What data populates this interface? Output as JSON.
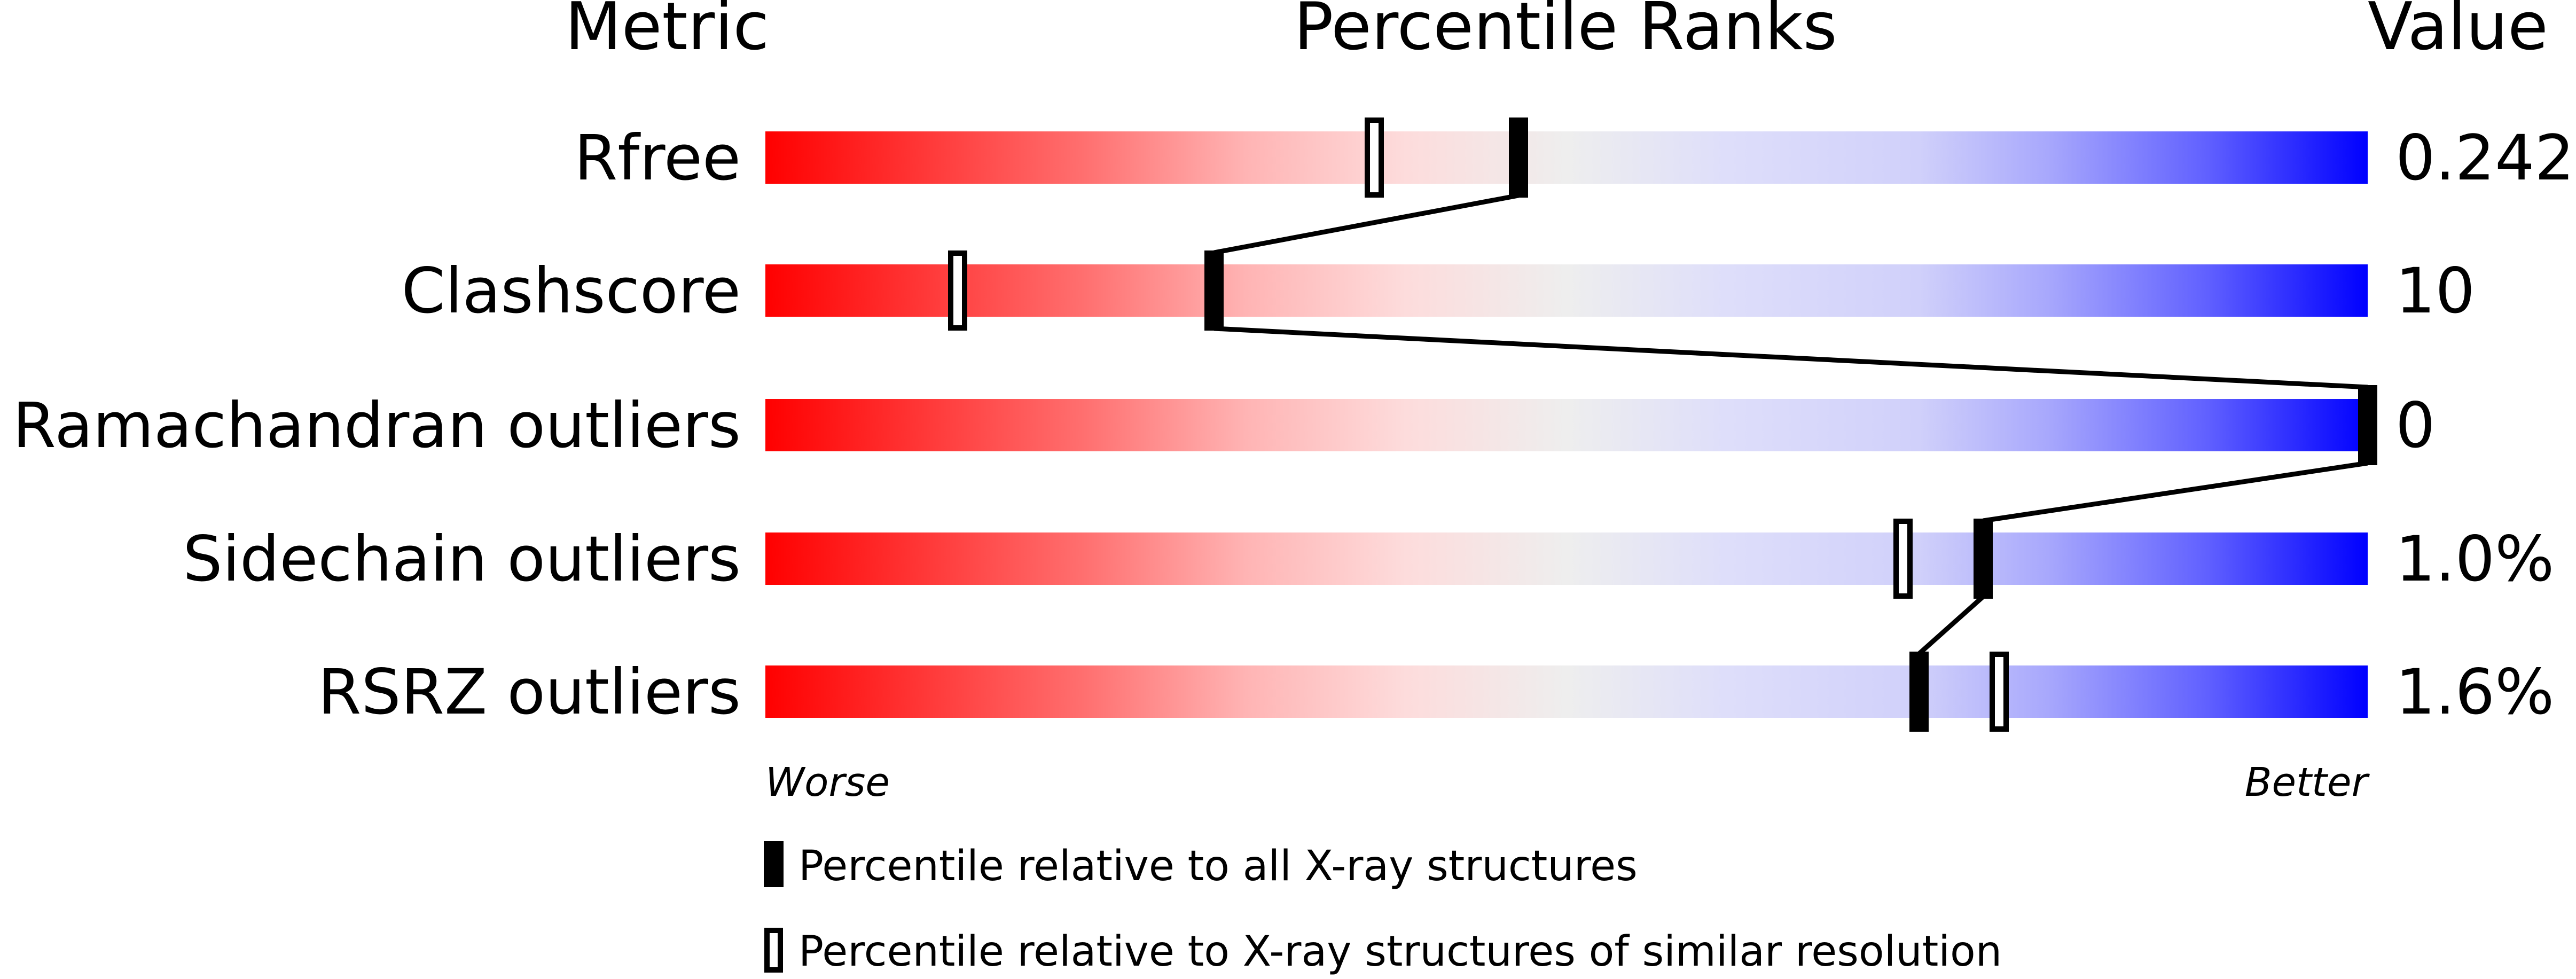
{
  "chart_data": {
    "type": "percentile-slider",
    "headers": {
      "metric": "Metric",
      "ranks": "Percentile Ranks",
      "value": "Value"
    },
    "xlim": [
      0,
      100
    ],
    "axis_labels": {
      "left": "Worse",
      "right": "Better"
    },
    "metrics": [
      {
        "name": "Rfree",
        "value": "0.242",
        "percentile_all": 47,
        "percentile_similar": 38
      },
      {
        "name": "Clashscore",
        "value": "10",
        "percentile_all": 28,
        "percentile_similar": 12
      },
      {
        "name": "Ramachandran outliers",
        "value": "0",
        "percentile_all": 100,
        "percentile_similar": null
      },
      {
        "name": "Sidechain outliers",
        "value": "1.0%",
        "percentile_all": 76,
        "percentile_similar": 71
      },
      {
        "name": "RSRZ outliers",
        "value": "1.6%",
        "percentile_all": 72,
        "percentile_similar": 77
      }
    ],
    "legend": [
      {
        "marker": "filled",
        "label": "Percentile relative to all X-ray structures"
      },
      {
        "marker": "hollow",
        "label": "Percentile relative to X-ray structures of similar resolution"
      }
    ],
    "colors": {
      "worse": "#ff0000",
      "middle": "#eeeeee",
      "better": "#0000ff"
    }
  }
}
